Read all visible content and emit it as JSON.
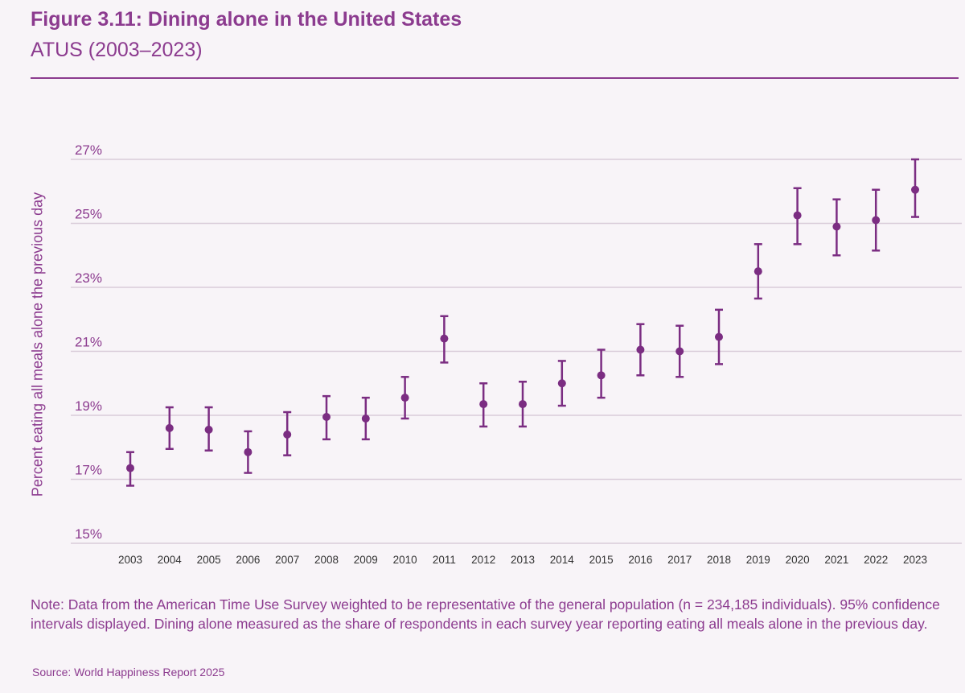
{
  "header": {
    "title": "Figure 3.11: Dining alone in the United States",
    "subtitle": "ATUS (2003–2023)"
  },
  "footer": {
    "note": "Note: Data from the American Time Use Survey weighted to be representative of the general population (n = 234,185 individuals). 95% confidence intervals displayed. Dining alone measured as the share of respondents in each survey year reporting eating all meals alone in the previous day.",
    "source": "Source: World Happiness Report 2025"
  },
  "colors": {
    "accent": "#8c3b8f",
    "marker": "#7b2d82",
    "grid": "#d9cbd9",
    "background": "#f8f4f8"
  },
  "chart_data": {
    "type": "scatter",
    "title": "Figure 3.11: Dining alone in the United States",
    "subtitle": "ATUS (2003–2023)",
    "xlabel": "",
    "ylabel": "Percent eating all meals alone the previous day",
    "ylim": [
      15,
      27
    ],
    "yticks": [
      15,
      17,
      19,
      21,
      23,
      25,
      27
    ],
    "ytick_labels": [
      "15%",
      "17%",
      "19%",
      "21%",
      "23%",
      "25%",
      "27%"
    ],
    "grid": true,
    "error_bars": "95% confidence interval",
    "x": [
      "2003",
      "2004",
      "2005",
      "2006",
      "2007",
      "2008",
      "2009",
      "2010",
      "2011",
      "2012",
      "2013",
      "2014",
      "2015",
      "2016",
      "2017",
      "2018",
      "2019",
      "2020",
      "2021",
      "2022",
      "2023"
    ],
    "y": [
      17.35,
      18.6,
      18.55,
      17.85,
      18.4,
      18.95,
      18.9,
      19.55,
      21.4,
      19.35,
      19.35,
      20.0,
      20.25,
      21.05,
      21.0,
      21.45,
      23.5,
      25.25,
      24.9,
      25.1,
      26.05
    ],
    "lower": [
      16.8,
      17.95,
      17.9,
      17.2,
      17.75,
      18.25,
      18.25,
      18.9,
      20.65,
      18.65,
      18.65,
      19.3,
      19.55,
      20.25,
      20.2,
      20.6,
      22.65,
      24.35,
      24.0,
      24.15,
      25.2
    ],
    "upper": [
      17.85,
      19.25,
      19.25,
      18.5,
      19.1,
      19.6,
      19.55,
      20.2,
      22.1,
      20.0,
      20.05,
      20.7,
      21.05,
      21.85,
      21.8,
      22.3,
      24.35,
      26.1,
      25.75,
      26.05,
      27.0
    ]
  }
}
